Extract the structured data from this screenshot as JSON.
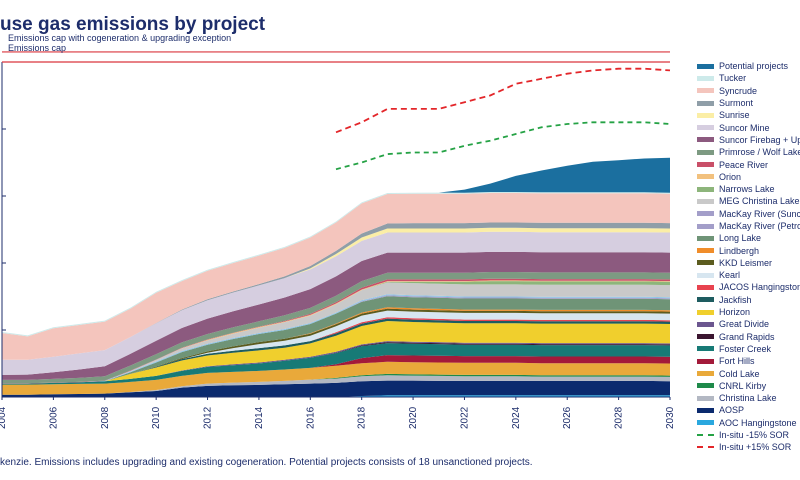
{
  "title": "use gas emissions by project",
  "footnote": "kenzie. Emissions includes upgrading and existing cogeneration. Potential projects consists of 18 unsanctioned projects.",
  "chart_data": {
    "type": "area",
    "stacked": true,
    "x": [
      2004,
      2005,
      2006,
      2007,
      2008,
      2009,
      2010,
      2011,
      2012,
      2013,
      2014,
      2015,
      2016,
      2017,
      2018,
      2019,
      2020,
      2021,
      2022,
      2023,
      2024,
      2025,
      2026,
      2027,
      2028,
      2029,
      2030
    ],
    "x_ticks": [
      "2004",
      "2006",
      "2008",
      "2010",
      "2012",
      "2014",
      "2016",
      "2018",
      "2020",
      "2022",
      "2024",
      "2026",
      "2028",
      "2030"
    ],
    "xlim": [
      2004,
      2030
    ],
    "ylim": [
      0,
      100
    ],
    "grid": false,
    "legend_position": "right",
    "series": [
      {
        "name": "AOC Hangingstone",
        "color": "#2aa8df",
        "values": [
          0,
          0,
          0,
          0,
          0,
          0,
          0,
          0,
          0,
          0,
          0,
          0,
          0,
          0,
          0.3,
          0.5,
          0.5,
          0.5,
          0.5,
          0.5,
          0.5,
          0.5,
          0.5,
          0.5,
          0.5,
          0.5,
          0.5
        ]
      },
      {
        "name": "AOSP",
        "color": "#0b2a6e",
        "values": [
          0.7,
          0.7,
          0.8,
          0.9,
          1.0,
          1.4,
          1.8,
          2.8,
          3.3,
          3.5,
          3.6,
          3.8,
          4.0,
          4.2,
          4.4,
          4.4,
          4.4,
          4.3,
          4.3,
          4.3,
          4.3,
          4.3,
          4.3,
          4.3,
          4.3,
          4.3,
          4.2
        ]
      },
      {
        "name": "Christina Lake",
        "color": "#b3b8c3",
        "values": [
          0,
          0,
          0,
          0,
          0,
          0.1,
          0.3,
          0.4,
          0.7,
          0.8,
          0.9,
          1.0,
          1.2,
          1.3,
          1.5,
          1.6,
          1.5,
          1.5,
          1.4,
          1.4,
          1.4,
          1.3,
          1.3,
          1.3,
          1.3,
          1.3,
          1.3
        ]
      },
      {
        "name": "CNRL Kirby",
        "color": "#1e8a4a",
        "values": [
          0,
          0,
          0,
          0,
          0,
          0,
          0,
          0,
          0,
          0,
          0,
          0,
          0,
          0.2,
          0.3,
          0.4,
          0.4,
          0.4,
          0.4,
          0.4,
          0.4,
          0.4,
          0.4,
          0.4,
          0.4,
          0.4,
          0.4
        ]
      },
      {
        "name": "Cold Lake",
        "color": "#e9a93a",
        "values": [
          3.0,
          3.0,
          3.0,
          3.0,
          3.0,
          3.0,
          3.0,
          3.1,
          3.2,
          3.2,
          3.3,
          3.4,
          3.5,
          3.6,
          3.6,
          3.6,
          3.6,
          3.6,
          3.6,
          3.6,
          3.6,
          3.6,
          3.6,
          3.6,
          3.6,
          3.6,
          3.6
        ]
      },
      {
        "name": "Fort Hills",
        "color": "#a31a3a",
        "values": [
          0,
          0,
          0,
          0,
          0,
          0,
          0,
          0,
          0,
          0,
          0,
          0,
          0,
          0.5,
          1.5,
          2.0,
          2.0,
          2.0,
          2.0,
          2.0,
          2.0,
          2.0,
          2.0,
          2.0,
          2.0,
          2.0,
          2.0
        ]
      },
      {
        "name": "Foster Creek",
        "color": "#177a76",
        "values": [
          0.3,
          0.3,
          0.4,
          0.5,
          0.7,
          0.9,
          1.2,
          1.5,
          1.8,
          2.0,
          2.2,
          2.6,
          3.0,
          3.3,
          3.6,
          3.6,
          3.5,
          3.5,
          3.4,
          3.4,
          3.4,
          3.4,
          3.4,
          3.4,
          3.4,
          3.4,
          3.4
        ]
      },
      {
        "name": "Grand Rapids",
        "color": "#3b1530",
        "values": [
          0,
          0,
          0,
          0,
          0,
          0,
          0,
          0,
          0,
          0,
          0,
          0,
          0,
          0.1,
          0.2,
          0.3,
          0.3,
          0.3,
          0.3,
          0.3,
          0.3,
          0.3,
          0.3,
          0.3,
          0.3,
          0.3,
          0.3
        ]
      },
      {
        "name": "Great Divide",
        "color": "#6b568f",
        "values": [
          0,
          0,
          0,
          0,
          0,
          0,
          0,
          0.1,
          0.2,
          0.3,
          0.3,
          0.3,
          0.3,
          0.3,
          0.3,
          0.3,
          0.3,
          0.3,
          0.3,
          0.3,
          0.3,
          0.3,
          0.3,
          0.3,
          0.3,
          0.3,
          0.3
        ]
      },
      {
        "name": "Horizon",
        "color": "#f0cf2d",
        "values": [
          0,
          0,
          0,
          0,
          0,
          1.5,
          2.5,
          3.0,
          3.2,
          3.4,
          3.6,
          3.6,
          4.0,
          4.8,
          5.5,
          6.0,
          5.9,
          5.8,
          5.8,
          5.8,
          5.8,
          5.8,
          5.8,
          5.8,
          5.8,
          5.8,
          5.8
        ]
      },
      {
        "name": "Jackfish",
        "color": "#1e5c60",
        "values": [
          0,
          0,
          0,
          0,
          0,
          0,
          0.2,
          0.4,
          0.5,
          0.6,
          0.7,
          0.7,
          0.7,
          0.7,
          0.7,
          0.7,
          0.7,
          0.7,
          0.7,
          0.7,
          0.7,
          0.7,
          0.7,
          0.7,
          0.7,
          0.7,
          0.7
        ]
      },
      {
        "name": "JACOS Hangingstone",
        "color": "#e8434f",
        "values": [
          0,
          0,
          0,
          0,
          0,
          0,
          0,
          0,
          0,
          0,
          0,
          0,
          0,
          0.3,
          0.4,
          0.4,
          0.4,
          0.4,
          0.4,
          0.4,
          0.4,
          0.4,
          0.4,
          0.4,
          0.4,
          0.4,
          0.4
        ]
      },
      {
        "name": "Kearl",
        "color": "#d7e6f0",
        "values": [
          0,
          0,
          0,
          0,
          0,
          0,
          0,
          0,
          0.3,
          0.8,
          1.2,
          1.4,
          1.6,
          1.8,
          2.0,
          2.0,
          2.0,
          2.0,
          2.0,
          2.0,
          2.0,
          2.0,
          2.0,
          2.0,
          2.0,
          2.0,
          2.0
        ]
      },
      {
        "name": "KKD Leismer",
        "color": "#5c5c1f",
        "values": [
          0,
          0,
          0,
          0,
          0,
          0,
          0.1,
          0.3,
          0.4,
          0.5,
          0.6,
          0.6,
          0.6,
          0.6,
          0.6,
          0.6,
          0.6,
          0.6,
          0.6,
          0.6,
          0.6,
          0.6,
          0.6,
          0.6,
          0.6,
          0.6,
          0.6
        ]
      },
      {
        "name": "Lindbergh",
        "color": "#f08d2a",
        "values": [
          0,
          0,
          0,
          0,
          0,
          0,
          0,
          0,
          0,
          0,
          0,
          0,
          0.1,
          0.2,
          0.3,
          0.4,
          0.4,
          0.4,
          0.4,
          0.4,
          0.4,
          0.4,
          0.4,
          0.4,
          0.4,
          0.4,
          0.4
        ]
      },
      {
        "name": "Long Lake",
        "color": "#6f9477",
        "values": [
          0,
          0,
          0,
          0,
          0,
          0.5,
          1.2,
          1.8,
          2.0,
          2.2,
          2.4,
          2.6,
          2.8,
          3.0,
          3.2,
          3.3,
          3.3,
          3.3,
          3.3,
          3.3,
          3.3,
          3.3,
          3.3,
          3.3,
          3.3,
          3.3,
          3.3
        ]
      },
      {
        "name": "MacKay River (Petronas)",
        "color": "#a39ec9",
        "values": [
          0,
          0,
          0,
          0,
          0,
          0,
          0,
          0,
          0,
          0,
          0,
          0,
          0,
          0,
          0.2,
          0.3,
          0.3,
          0.3,
          0.3,
          0.3,
          0.3,
          0.3,
          0.3,
          0.3,
          0.3,
          0.3,
          0.3
        ]
      },
      {
        "name": "MacKay River (Suncor)",
        "color": "#8ec4e8",
        "values": [
          0,
          0,
          0,
          0,
          0.1,
          0.2,
          0.3,
          0.3,
          0.3,
          0.3,
          0.3,
          0.3,
          0.3,
          0.3,
          0.3,
          0.3,
          0.3,
          0.3,
          0.3,
          0.3,
          0.3,
          0.3,
          0.3,
          0.3,
          0.3,
          0.3,
          0.3
        ]
      },
      {
        "name": "MEG Christina Lake",
        "color": "#c9c9c9",
        "values": [
          0,
          0,
          0,
          0,
          0,
          0.2,
          0.5,
          0.8,
          1.0,
          1.3,
          1.6,
          2.0,
          2.2,
          2.5,
          3.0,
          3.5,
          3.6,
          3.6,
          3.6,
          3.6,
          3.6,
          3.6,
          3.6,
          3.6,
          3.6,
          3.6,
          3.6
        ]
      },
      {
        "name": "Narrows Lake",
        "color": "#8db57b",
        "values": [
          0,
          0,
          0,
          0,
          0,
          0,
          0,
          0,
          0,
          0,
          0,
          0,
          0,
          0,
          0,
          0.2,
          0.4,
          0.6,
          0.8,
          1.0,
          1.0,
          1.0,
          1.0,
          1.0,
          1.0,
          1.0,
          1.0
        ]
      },
      {
        "name": "Orion",
        "color": "#f2c17e",
        "values": [
          0,
          0,
          0,
          0,
          0,
          0,
          0,
          0.1,
          0.2,
          0.2,
          0.2,
          0.2,
          0.2,
          0.2,
          0.2,
          0.2,
          0.2,
          0.2,
          0.2,
          0.2,
          0.2,
          0.2,
          0.2,
          0.2,
          0.2,
          0.2,
          0.2
        ]
      },
      {
        "name": "Peace River",
        "color": "#c94f68",
        "values": [
          0.1,
          0.1,
          0.1,
          0.1,
          0.1,
          0.1,
          0.1,
          0.1,
          0.1,
          0.1,
          0.1,
          0.2,
          0.3,
          0.4,
          0.5,
          0.5,
          0.5,
          0.5,
          0.5,
          0.5,
          0.5,
          0.5,
          0.5,
          0.5,
          0.5,
          0.5,
          0.5
        ]
      },
      {
        "name": "Primrose / Wolf Lake",
        "color": "#7d9a82",
        "values": [
          1.0,
          1.0,
          1.1,
          1.2,
          1.3,
          1.5,
          1.6,
          1.6,
          1.6,
          1.6,
          1.6,
          1.7,
          1.8,
          1.9,
          2.0,
          2.0,
          2.0,
          2.0,
          2.0,
          2.0,
          2.0,
          2.0,
          2.0,
          2.0,
          2.0,
          2.0,
          2.0
        ]
      },
      {
        "name": "Suncor Firebag + Upgrader",
        "color": "#8c5a7f",
        "values": [
          1.5,
          1.6,
          2.0,
          2.5,
          3.0,
          3.5,
          4.0,
          4.3,
          4.6,
          4.8,
          5.0,
          5.3,
          5.6,
          5.8,
          6.0,
          6.0,
          6.0,
          6.0,
          6.0,
          6.0,
          6.0,
          6.0,
          6.0,
          6.0,
          6.0,
          6.0,
          6.0
        ]
      },
      {
        "name": "Suncor Mine",
        "color": "#d6cee0",
        "values": [
          4.5,
          4.4,
          4.6,
          4.8,
          4.8,
          5.0,
          5.2,
          5.3,
          5.5,
          5.6,
          5.7,
          5.8,
          5.9,
          6.0,
          6.0,
          6.0,
          6.0,
          6.0,
          6.0,
          6.0,
          6.0,
          6.0,
          6.0,
          6.0,
          6.0,
          6.0,
          6.0
        ]
      },
      {
        "name": "Sunrise",
        "color": "#fbeea6",
        "values": [
          0,
          0,
          0,
          0,
          0,
          0,
          0,
          0,
          0,
          0,
          0,
          0,
          0.3,
          0.7,
          1.0,
          1.2,
          1.2,
          1.2,
          1.2,
          1.2,
          1.2,
          1.2,
          1.2,
          1.2,
          1.2,
          1.2,
          1.2
        ]
      },
      {
        "name": "Surmont",
        "color": "#8f9ea8",
        "values": [
          0,
          0,
          0,
          0,
          0,
          0,
          0.1,
          0.2,
          0.3,
          0.3,
          0.4,
          0.5,
          0.7,
          0.9,
          1.2,
          1.5,
          1.6,
          1.6,
          1.6,
          1.6,
          1.6,
          1.6,
          1.6,
          1.6,
          1.6,
          1.6,
          1.6
        ]
      },
      {
        "name": "Syncrude",
        "color": "#f4c5bd",
        "values": [
          8.0,
          7.0,
          8.5,
          8.5,
          8.5,
          8.5,
          9.0,
          8.5,
          8.5,
          8.5,
          8.5,
          8.5,
          8.5,
          8.5,
          9.0,
          8.8,
          8.8,
          8.8,
          8.8,
          8.8,
          8.8,
          8.8,
          8.8,
          8.8,
          8.8,
          8.8,
          8.8
        ]
      },
      {
        "name": "Tucker",
        "color": "#cdeaea",
        "values": [
          0.3,
          0.3,
          0.3,
          0.3,
          0.3,
          0.3,
          0.3,
          0.3,
          0.3,
          0.3,
          0.3,
          0.3,
          0.3,
          0.3,
          0.3,
          0.3,
          0.3,
          0.3,
          0.3,
          0.3,
          0.3,
          0.3,
          0.3,
          0.3,
          0.3,
          0.3,
          0.3
        ]
      },
      {
        "name": "Potential projects",
        "color": "#1b6f9f",
        "values": [
          0,
          0,
          0,
          0,
          0,
          0,
          0,
          0,
          0,
          0,
          0,
          0,
          0,
          0,
          0,
          0,
          0,
          0,
          0.9,
          2.5,
          4.8,
          6.5,
          7.9,
          9.1,
          9.6,
          10.1,
          10.4
        ]
      }
    ],
    "lines": [
      {
        "name": "In-situ -15% SOR",
        "color": "#25a245",
        "dash": "5,4",
        "x": [
          2017,
          2018,
          2019,
          2020,
          2021,
          2022,
          2023,
          2024,
          2025,
          2026,
          2027,
          2028,
          2029,
          2030
        ],
        "values": [
          68,
          70,
          72.5,
          73,
          73,
          75,
          76.5,
          78.5,
          80.5,
          81.5,
          82,
          82,
          82,
          81.5
        ]
      },
      {
        "name": "In-situ +15% SOR",
        "color": "#e3262a",
        "dash": "6,4",
        "x": [
          2017,
          2018,
          2019,
          2020,
          2021,
          2022,
          2023,
          2024,
          2025,
          2026,
          2027,
          2028,
          2029,
          2030
        ],
        "values": [
          79,
          82,
          86,
          86,
          86,
          88,
          90,
          93.5,
          95,
          96.5,
          97.5,
          98,
          98,
          97.5
        ]
      }
    ],
    "reference_lines": [
      {
        "label": "Emissions cap with cogeneration & upgrading exception",
        "value": 103,
        "color": "#d9363e"
      },
      {
        "label": "Emissions cap",
        "value": 100,
        "color": "#d9363e"
      }
    ],
    "legend": [
      "Potential projects",
      "Tucker",
      "Syncrude",
      "Surmont",
      "Sunrise",
      "Suncor Mine",
      "Suncor Firebag + Up",
      "Primrose / Wolf Lake",
      "Peace River",
      "Orion",
      "Narrows Lake",
      "MEG Christina Lake",
      "MacKay River (Sunc",
      "MacKay River (Petro",
      "Long Lake",
      "Lindbergh",
      "KKD Leismer",
      "Kearl",
      "JACOS Hangingston",
      "Jackfish",
      "Horizon",
      "Great Divide",
      "Grand Rapids",
      "Foster Creek",
      "Fort Hills",
      "Cold Lake",
      "CNRL Kirby",
      "Christina Lake",
      "AOSP",
      "AOC Hangingstone",
      "In-situ -15% SOR",
      "In-situ +15% SOR"
    ]
  }
}
